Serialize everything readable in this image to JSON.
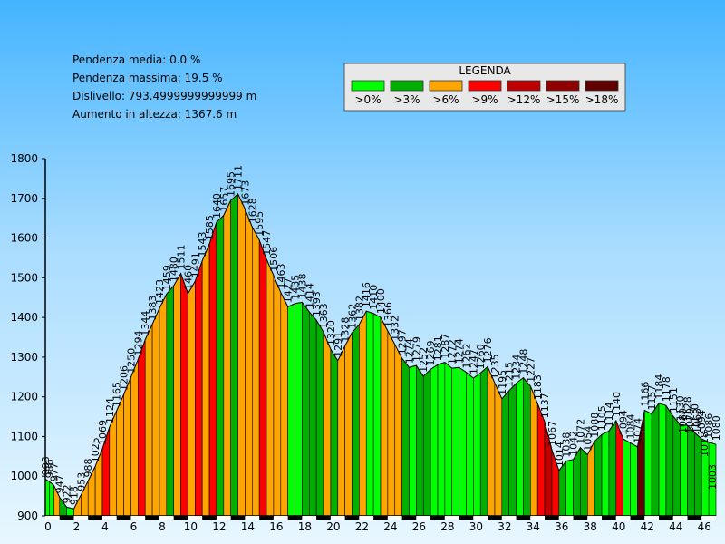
{
  "stats": {
    "pendenza_media": "Pendenza media: 0.0 %",
    "pendenza_massima": "Pendenza massima: 19.5 %",
    "dislivello": "Dislivello: 793.4999999999999 m",
    "aumento": "Aumento in altezza: 1367.6 m"
  },
  "legend": {
    "title": "LEGENDA",
    "items": [
      {
        "label": ">0%",
        "color": "#00ff00"
      },
      {
        "label": ">3%",
        "color": "#00b000"
      },
      {
        "label": ">6%",
        "color": "#ffa500"
      },
      {
        "label": ">9%",
        "color": "#ff0000"
      },
      {
        "label": ">12%",
        "color": "#c00000"
      },
      {
        "label": ">15%",
        "color": "#900000"
      },
      {
        "label": ">18%",
        "color": "#600000"
      }
    ]
  },
  "chart_data": {
    "type": "area",
    "xlim": [
      0,
      47
    ],
    "ylim": [
      900,
      1800
    ],
    "x_ticks": [
      "0",
      "2",
      "4",
      "6",
      "8",
      "10",
      "12",
      "14",
      "16",
      "18",
      "20",
      "22",
      "24",
      "26",
      "28",
      "30",
      "32",
      "34",
      "36",
      "38",
      "40",
      "42",
      "44",
      "46"
    ],
    "y_ticks": [
      "900",
      "1000",
      "1100",
      "1200",
      "1300",
      "1400",
      "1500",
      "1600",
      "1700",
      "1800"
    ],
    "points": [
      {
        "x": 0.0,
        "y": 993,
        "label": "993"
      },
      {
        "x": 0.3,
        "y": 986,
        "label": "986"
      },
      {
        "x": 0.6,
        "y": 977,
        "label": "977"
      },
      {
        "x": 1.0,
        "y": 947,
        "label": "947"
      },
      {
        "x": 1.5,
        "y": 922,
        "label": "922"
      },
      {
        "x": 2.0,
        "y": 918,
        "label": "918"
      },
      {
        "x": 2.5,
        "y": 953,
        "label": "953"
      },
      {
        "x": 3.0,
        "y": 988,
        "label": "988"
      },
      {
        "x": 3.5,
        "y": 1025,
        "label": "1025"
      },
      {
        "x": 4.0,
        "y": 1069,
        "label": "1069"
      },
      {
        "x": 4.5,
        "y": 1124,
        "label": "1124"
      },
      {
        "x": 5.0,
        "y": 1165,
        "label": "1165"
      },
      {
        "x": 5.5,
        "y": 1206,
        "label": "1206"
      },
      {
        "x": 6.0,
        "y": 1250,
        "label": "1250"
      },
      {
        "x": 6.5,
        "y": 1294,
        "label": "1294"
      },
      {
        "x": 7.0,
        "y": 1344,
        "label": "1344"
      },
      {
        "x": 7.5,
        "y": 1383,
        "label": "1383"
      },
      {
        "x": 8.0,
        "y": 1423,
        "label": "1423"
      },
      {
        "x": 8.5,
        "y": 1459,
        "label": "1459"
      },
      {
        "x": 9.0,
        "y": 1480,
        "label": "1480"
      },
      {
        "x": 9.5,
        "y": 1511,
        "label": "1511"
      },
      {
        "x": 10.0,
        "y": 1460,
        "label": "1460"
      },
      {
        "x": 10.5,
        "y": 1491,
        "label": "1491"
      },
      {
        "x": 11.0,
        "y": 1543,
        "label": "1543"
      },
      {
        "x": 11.5,
        "y": 1585,
        "label": "1585"
      },
      {
        "x": 12.0,
        "y": 1640,
        "label": "1640"
      },
      {
        "x": 12.5,
        "y": 1657,
        "label": "1657"
      },
      {
        "x": 13.0,
        "y": 1695,
        "label": "1695"
      },
      {
        "x": 13.5,
        "y": 1711,
        "label": "1711"
      },
      {
        "x": 14.0,
        "y": 1673,
        "label": "1673"
      },
      {
        "x": 14.5,
        "y": 1628,
        "label": "1628"
      },
      {
        "x": 15.0,
        "y": 1595,
        "label": "1595"
      },
      {
        "x": 15.5,
        "y": 1547,
        "label": "1547"
      },
      {
        "x": 16.0,
        "y": 1506,
        "label": "1506"
      },
      {
        "x": 16.5,
        "y": 1463,
        "label": "1463"
      },
      {
        "x": 17.0,
        "y": 1427,
        "label": "1427"
      },
      {
        "x": 17.5,
        "y": 1435,
        "label": "1435"
      },
      {
        "x": 18.0,
        "y": 1438,
        "label": "1438"
      },
      {
        "x": 18.5,
        "y": 1414,
        "label": "1414"
      },
      {
        "x": 19.0,
        "y": 1393,
        "label": "1393"
      },
      {
        "x": 19.5,
        "y": 1363,
        "label": "1363"
      },
      {
        "x": 20.0,
        "y": 1320,
        "label": "1320"
      },
      {
        "x": 20.5,
        "y": 1291,
        "label": "1291"
      },
      {
        "x": 21.0,
        "y": 1328,
        "label": "1328"
      },
      {
        "x": 21.5,
        "y": 1362,
        "label": "1362"
      },
      {
        "x": 22.0,
        "y": 1382,
        "label": "1382"
      },
      {
        "x": 22.5,
        "y": 1416,
        "label": "1416"
      },
      {
        "x": 23.0,
        "y": 1410,
        "label": "1410"
      },
      {
        "x": 23.5,
        "y": 1400,
        "label": "1400"
      },
      {
        "x": 24.0,
        "y": 1366,
        "label": "1366"
      },
      {
        "x": 24.5,
        "y": 1332,
        "label": "1332"
      },
      {
        "x": 25.0,
        "y": 1297,
        "label": "1297"
      },
      {
        "x": 25.5,
        "y": 1274,
        "label": "1274"
      },
      {
        "x": 26.0,
        "y": 1279,
        "label": "1279"
      },
      {
        "x": 26.5,
        "y": 1252,
        "label": "1252"
      },
      {
        "x": 27.0,
        "y": 1269,
        "label": "1269"
      },
      {
        "x": 27.5,
        "y": 1281,
        "label": "1281"
      },
      {
        "x": 28.0,
        "y": 1287,
        "label": "1287"
      },
      {
        "x": 28.5,
        "y": 1272,
        "label": "1272"
      },
      {
        "x": 29.0,
        "y": 1274,
        "label": "1274"
      },
      {
        "x": 29.5,
        "y": 1262,
        "label": "1262"
      },
      {
        "x": 30.0,
        "y": 1247,
        "label": "1247"
      },
      {
        "x": 30.5,
        "y": 1260,
        "label": "1260"
      },
      {
        "x": 31.0,
        "y": 1276,
        "label": "1276"
      },
      {
        "x": 31.5,
        "y": 1235,
        "label": "1235"
      },
      {
        "x": 32.0,
        "y": 1195,
        "label": "1195"
      },
      {
        "x": 32.5,
        "y": 1215,
        "label": "1215"
      },
      {
        "x": 33.0,
        "y": 1234,
        "label": "1234"
      },
      {
        "x": 33.5,
        "y": 1248,
        "label": "1248"
      },
      {
        "x": 34.0,
        "y": 1227,
        "label": "1227"
      },
      {
        "x": 34.5,
        "y": 1183,
        "label": "1183"
      },
      {
        "x": 35.0,
        "y": 1137,
        "label": "1137"
      },
      {
        "x": 35.5,
        "y": 1067,
        "label": "1067"
      },
      {
        "x": 36.0,
        "y": 1014,
        "label": "1014"
      },
      {
        "x": 36.5,
        "y": 1038,
        "label": "1038"
      },
      {
        "x": 37.0,
        "y": 1042,
        "label": "1042"
      },
      {
        "x": 37.5,
        "y": 1072,
        "label": "1072"
      },
      {
        "x": 38.0,
        "y": 1054,
        "label": "1054"
      },
      {
        "x": 38.5,
        "y": 1088,
        "label": "1088"
      },
      {
        "x": 39.0,
        "y": 1105,
        "label": "1105"
      },
      {
        "x": 39.5,
        "y": 1114,
        "label": "1114"
      },
      {
        "x": 40.0,
        "y": 1140,
        "label": "1140"
      },
      {
        "x": 40.5,
        "y": 1094,
        "label": "1094"
      },
      {
        "x": 41.0,
        "y": 1084,
        "label": "1084"
      },
      {
        "x": 41.5,
        "y": 1074,
        "label": "1074"
      },
      {
        "x": 42.0,
        "y": 1166,
        "label": "1166"
      },
      {
        "x": 42.5,
        "y": 1157,
        "label": "1157"
      },
      {
        "x": 43.0,
        "y": 1184,
        "label": "1184"
      },
      {
        "x": 43.5,
        "y": 1178,
        "label": "1178"
      },
      {
        "x": 44.0,
        "y": 1151,
        "label": "1151"
      },
      {
        "x": 44.5,
        "y": 1130,
        "label": "1130"
      },
      {
        "x": 45.0,
        "y": 1128,
        "label": "1128"
      },
      {
        "x": 45.5,
        "y": 1110,
        "label": "1110"
      },
      {
        "x": 46.0,
        "y": 1094,
        "label": "1094"
      },
      {
        "x": 46.5,
        "y": 1086,
        "label": "1086"
      },
      {
        "x": 47.0,
        "y": 1080,
        "label": "1080"
      }
    ],
    "extra_labels": [
      "1080",
      "1079",
      "1063",
      "1018",
      "1003"
    ]
  }
}
